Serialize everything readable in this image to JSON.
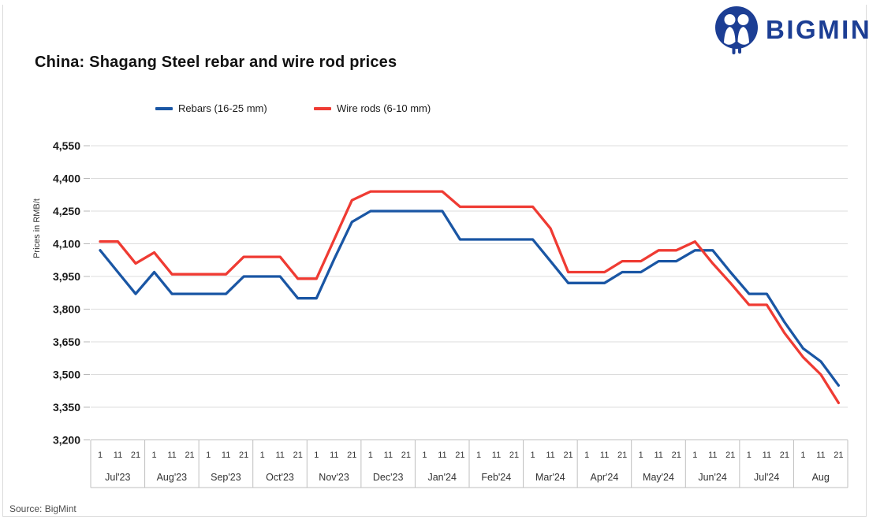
{
  "logo": {
    "text": "BIGMINT"
  },
  "title": "China: Shagang Steel rebar and wire rod prices",
  "y_axis_title": "Prices in RMB/t",
  "source": "Source: BigMint",
  "chart_data": {
    "type": "line",
    "title": "China: Shagang Steel rebar and wire rod prices",
    "ylabel": "Prices in RMB/t",
    "grid": "horizontal",
    "legend_position": "top",
    "y_axis": {
      "min": 3200,
      "max": 4550,
      "step": 150,
      "tick_labels": [
        "4,550",
        "4,400",
        "4,250",
        "4,100",
        "3,950",
        "3,800",
        "3,650",
        "3,500",
        "3,350",
        "3,200"
      ]
    },
    "x_axis": {
      "months": [
        "Jul'23",
        "Aug'23",
        "Sep'23",
        "Oct'23",
        "Nov'23",
        "Dec'23",
        "Jan'24",
        "Feb'24",
        "Mar'24",
        "Apr'24",
        "May'24",
        "Jun'24",
        "Jul'24",
        "Aug"
      ],
      "day_ticks_per_month": [
        "1",
        "11",
        "21"
      ]
    },
    "series": [
      {
        "name": "Rebars (16-25 mm)",
        "color": "#1a56a4",
        "values": [
          4070,
          3970,
          3870,
          3970,
          3870,
          3870,
          3870,
          3870,
          3950,
          3950,
          3950,
          3850,
          3850,
          4030,
          4200,
          4250,
          4250,
          4250,
          4250,
          4250,
          4120,
          4120,
          4120,
          4120,
          4120,
          4020,
          3920,
          3920,
          3920,
          3970,
          3970,
          4020,
          4020,
          4070,
          4070,
          3970,
          3870,
          3870,
          3740,
          3620,
          3560,
          3450
        ]
      },
      {
        "name": "Wire rods (6-10 mm)",
        "color": "#ef3b33",
        "values": [
          4110,
          4110,
          4010,
          4060,
          3960,
          3960,
          3960,
          3960,
          4040,
          4040,
          4040,
          3940,
          3940,
          4120,
          4300,
          4340,
          4340,
          4340,
          4340,
          4340,
          4270,
          4270,
          4270,
          4270,
          4270,
          4170,
          3970,
          3970,
          3970,
          4020,
          4020,
          4070,
          4070,
          4110,
          4010,
          3920,
          3820,
          3820,
          3690,
          3580,
          3500,
          3370
        ]
      }
    ]
  }
}
